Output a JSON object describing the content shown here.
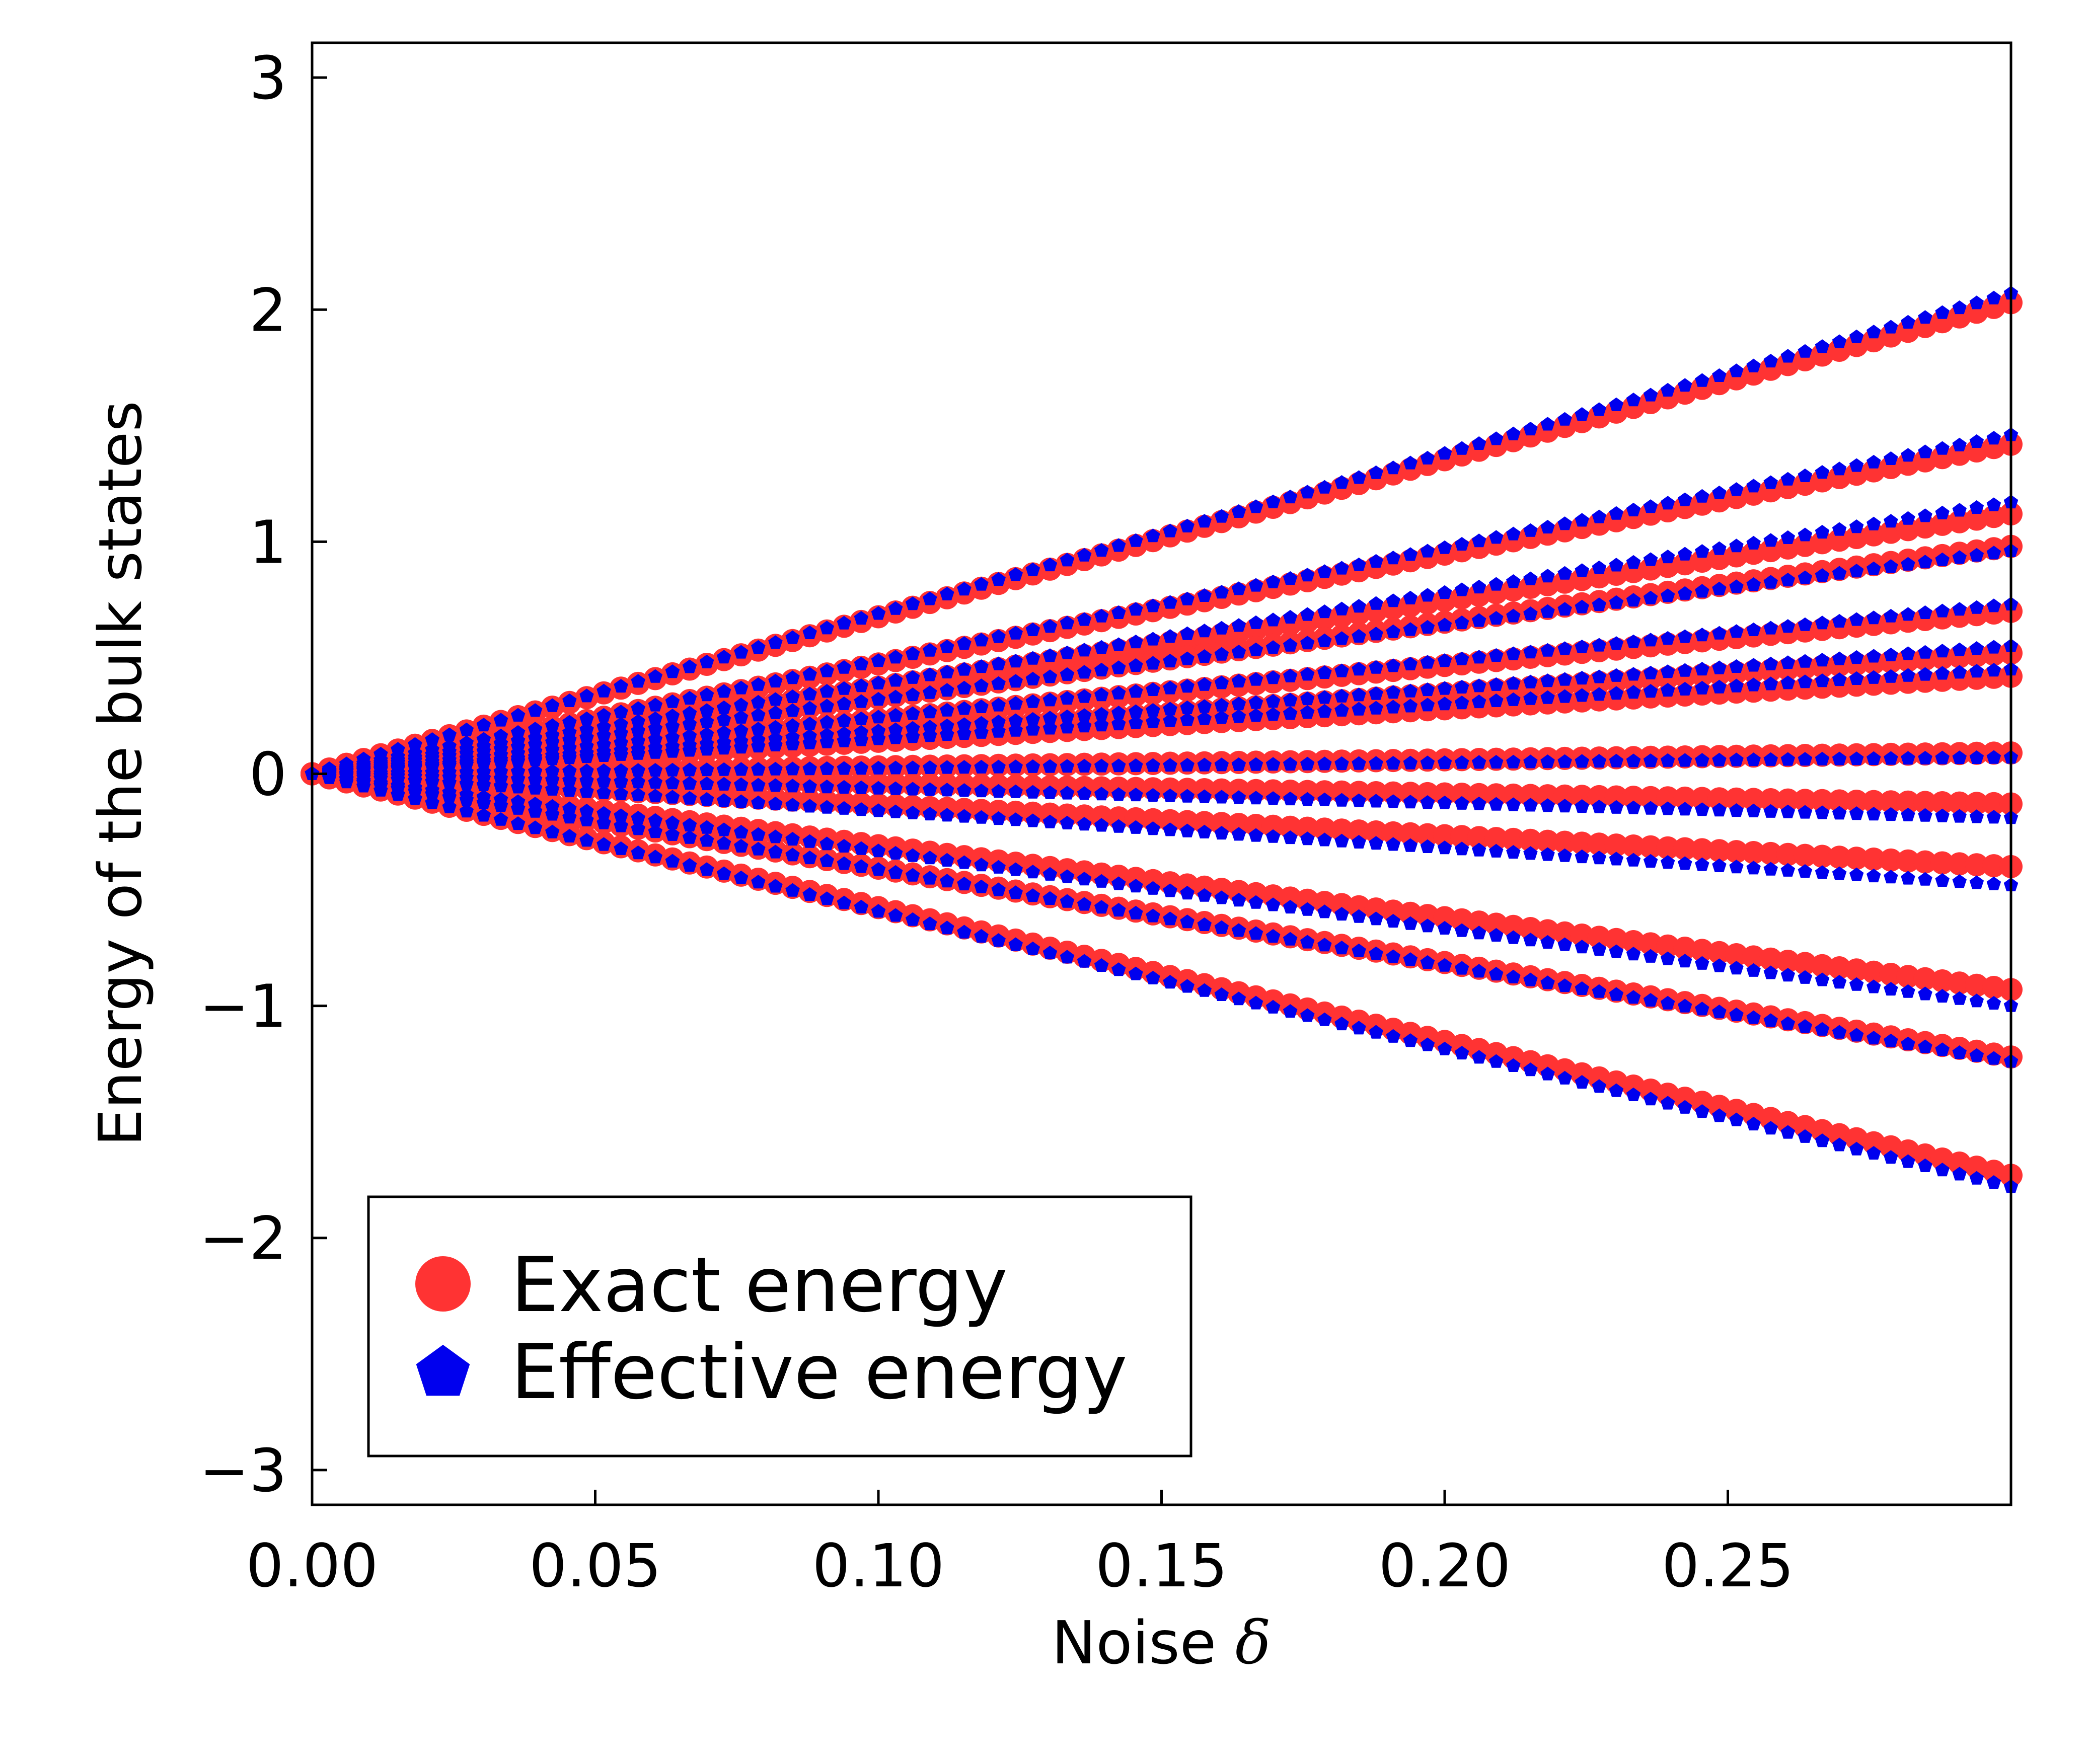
{
  "chart_data": {
    "type": "scatter",
    "title": "",
    "xlabel": "Noise",
    "xlabel_symbol": "δ",
    "ylabel": "Energy of the bulk states",
    "xlim": [
      0.0,
      0.3
    ],
    "ylim": [
      -3.15,
      3.15
    ],
    "xticks": [
      "0.00",
      "0.05",
      "0.10",
      "0.15",
      "0.20",
      "0.25"
    ],
    "yticks": [
      "3",
      "2",
      "1",
      "0",
      "−1",
      "−2",
      "−3"
    ],
    "grid": false,
    "legend_position": "bottom-left",
    "x": {
      "start": 0.0,
      "end": 0.3,
      "count": 100
    },
    "series": [
      {
        "name": "Exact energy",
        "marker": "circle",
        "color": "#ff3333",
        "end_values": [
          2.03,
          1.42,
          1.12,
          0.98,
          0.7,
          0.52,
          0.42,
          0.09,
          -0.13,
          -0.4,
          -0.93,
          -1.22,
          -1.73
        ]
      },
      {
        "name": "Effective energy",
        "marker": "pentagon",
        "color": "#0000ee",
        "end_values": [
          2.07,
          1.46,
          1.17,
          0.96,
          0.73,
          0.55,
          0.45,
          0.07,
          -0.19,
          -0.48,
          -1.0,
          -1.24,
          -1.78
        ]
      }
    ]
  }
}
